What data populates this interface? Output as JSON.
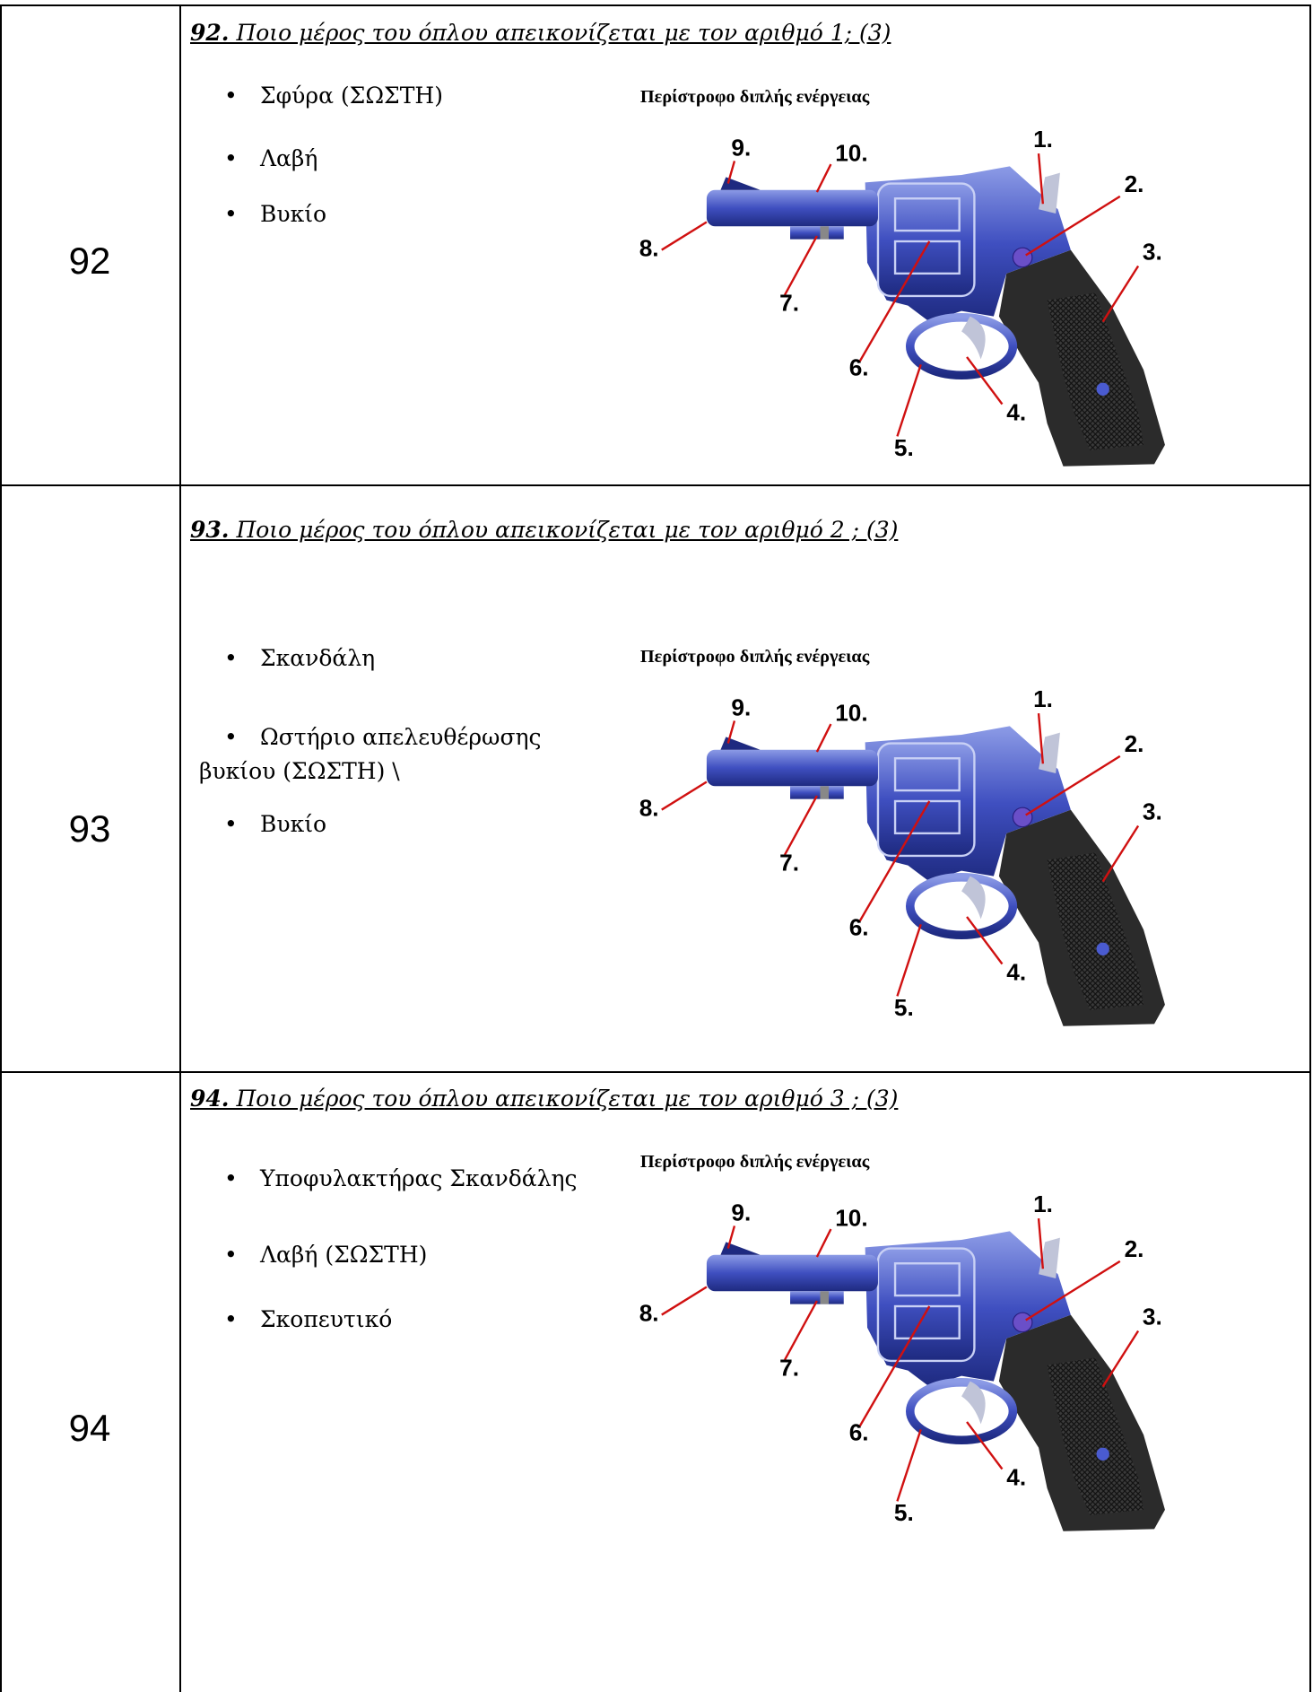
{
  "rows": [
    {
      "number": "92",
      "question": {
        "number": "92.",
        "text": " Ποιο μέρος του όπλου απεικονίζεται με τον αριθμό 1; (3)"
      },
      "options": [
        "Σφύρα  (ΣΩΣΤΗ)",
        "Λαβή",
        "Βυκίο"
      ],
      "diagram": {
        "title": "Περίστροφο διπλής ενέργειας",
        "labels": [
          "1.",
          "2.",
          "3.",
          "4.",
          "5.",
          "6.",
          "7.",
          "8.",
          "9.",
          "10."
        ]
      }
    },
    {
      "number": "93",
      "question": {
        "number": "93.",
        "text": " Ποιο μέρος του όπλου απεικονίζεται με τον αριθμό 2 ; (3)"
      },
      "options": [
        "Σκανδάλη",
        "Ωστήριο απελευθέρωσης βυκίου  (ΣΩΣΤΗ) \\",
        "Βυκίο"
      ],
      "diagram": {
        "title": "Περίστροφο διπλής ενέργειας",
        "labels": [
          "1.",
          "2.",
          "3.",
          "4.",
          "5.",
          "6.",
          "7.",
          "8.",
          "9.",
          "10."
        ]
      }
    },
    {
      "number": "94",
      "question": {
        "number": "94.",
        "text": " Ποιο μέρος του όπλου απεικονίζεται με τον αριθμό 3 ; (3)"
      },
      "options": [
        "Υποφυλακτήρας Σκανδάλης",
        "Λαβή (ΣΩΣΤΗ)",
        "Σκοπευτικό"
      ],
      "diagram": {
        "title": "Περίστροφο διπλής ενέργειας",
        "labels": [
          "1.",
          "2.",
          "3.",
          "4.",
          "5.",
          "6.",
          "7.",
          "8.",
          "9.",
          "10."
        ]
      }
    }
  ]
}
